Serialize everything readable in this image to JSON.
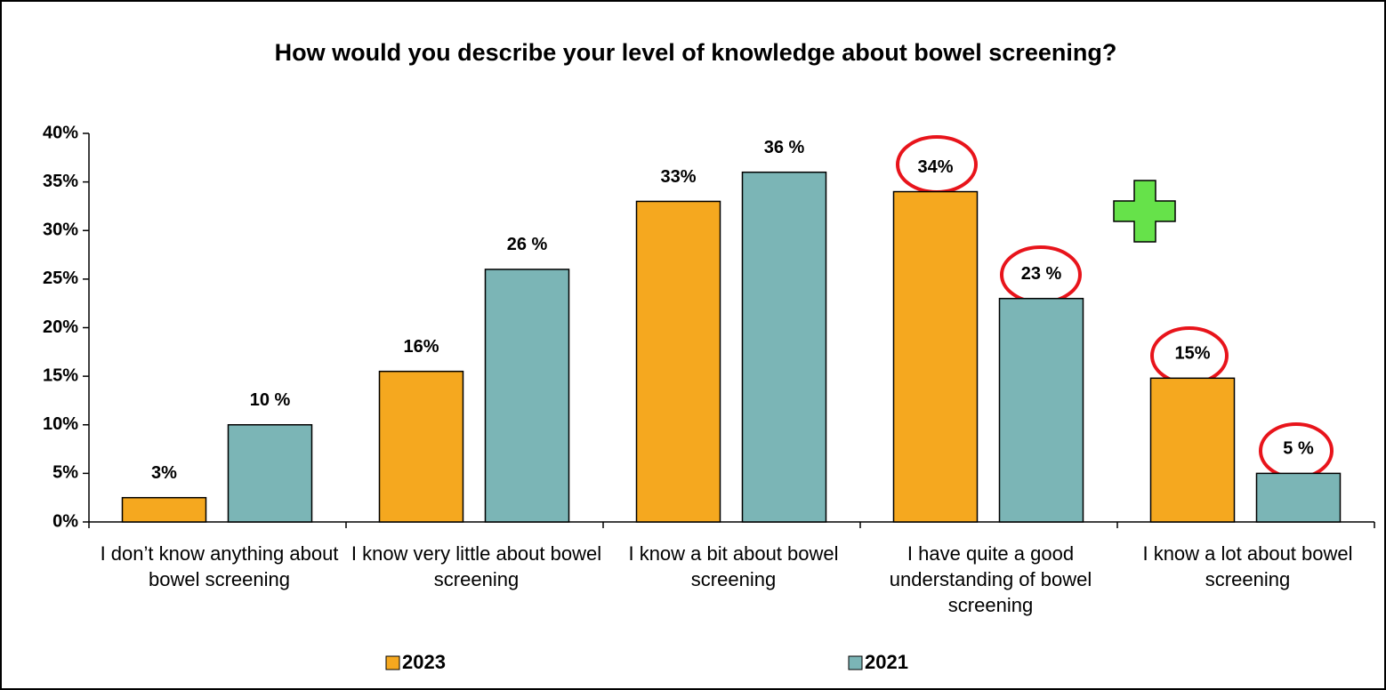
{
  "chart_data": {
    "type": "bar",
    "title": "How would you describe your level of knowledge about bowel screening?",
    "categories": [
      "I don’t know anything about bowel screening",
      "I know very little about bowel screening",
      "I know a bit about bowel screening",
      "I have quite a good understanding of bowel screening",
      "I know a lot about bowel screening"
    ],
    "series": [
      {
        "name": "2023",
        "color": "#F5A81F",
        "values": [
          2.5,
          15.5,
          33,
          34,
          14.8
        ],
        "value_labels": [
          "3%",
          "16%",
          "33%",
          "34%",
          "15%"
        ]
      },
      {
        "name": "2021",
        "color": "#7BB5B6",
        "values": [
          10,
          26,
          36,
          23,
          5
        ],
        "value_labels": [
          "10 %",
          "26 %",
          "36 %",
          "23 %",
          "5 %"
        ]
      }
    ],
    "ylim": [
      0,
      40
    ],
    "yticks": [
      {
        "value": 0,
        "label": "0%"
      },
      {
        "value": 5,
        "label": "5%"
      },
      {
        "value": 10,
        "label": "10%"
      },
      {
        "value": 15,
        "label": "15%"
      },
      {
        "value": 20,
        "label": "20%"
      },
      {
        "value": 25,
        "label": "25%"
      },
      {
        "value": 30,
        "label": "30%"
      },
      {
        "value": 35,
        "label": "35%"
      },
      {
        "value": 40,
        "label": "40%"
      }
    ],
    "grid": false,
    "legend": "bottom"
  }
}
